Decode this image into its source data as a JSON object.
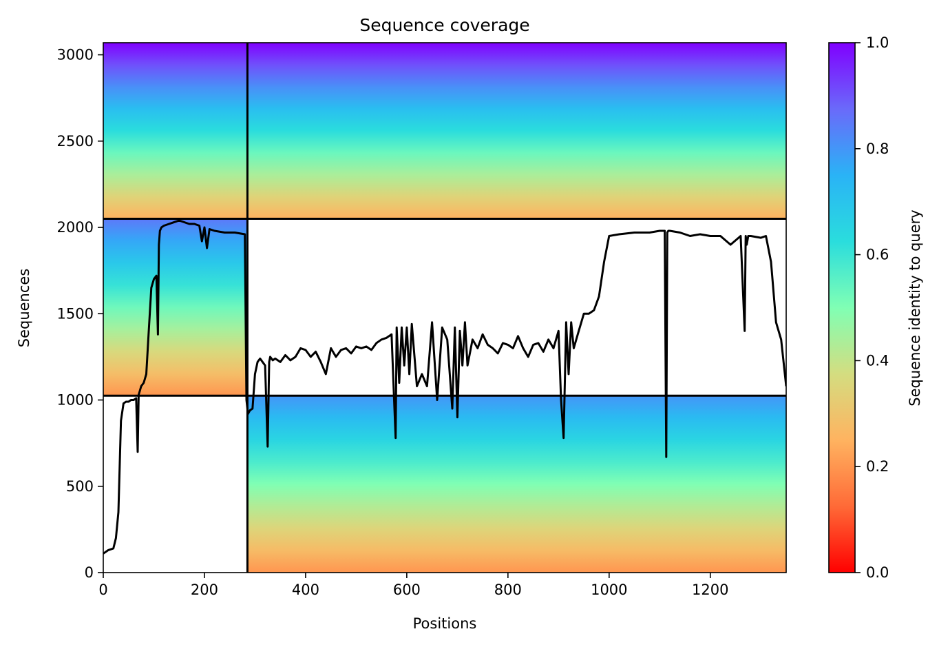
{
  "chart_data": {
    "type": "heatmap",
    "title": "Sequence coverage",
    "xlabel": "Positions",
    "ylabel": "Sequences",
    "xlim": [
      0,
      1350
    ],
    "ylim": [
      0,
      3070
    ],
    "x_ticks": [
      0,
      200,
      400,
      600,
      800,
      1000,
      1200
    ],
    "y_ticks": [
      0,
      500,
      1000,
      1500,
      2000,
      2500,
      3000
    ],
    "colorbar": {
      "label": "Sequence identity to query",
      "colormap": "rainbow_r",
      "range": [
        0.0,
        1.0
      ],
      "ticks": [
        "0.0",
        "0.2",
        "0.4",
        "0.6",
        "0.8",
        "1.0"
      ],
      "stops": [
        "#ff0000",
        "#ff6a37",
        "#ffb360",
        "#d4dd80",
        "#80ffb4",
        "#2adddd",
        "#2ab3f6",
        "#6a6afa",
        "#8000ff"
      ]
    },
    "chain_boundaries": {
      "x": [
        285
      ],
      "y": [
        1025,
        2050
      ]
    },
    "blocks": [
      {
        "name": "chain-A-self",
        "x": [
          0,
          285
        ],
        "y": [
          2050,
          3070
        ],
        "identity_top": 1.0,
        "identity_bottom": 0.25
      },
      {
        "name": "chain-B-paired",
        "x": [
          285,
          1350
        ],
        "y": [
          2050,
          3070
        ],
        "identity_top": 1.0,
        "identity_bottom": 0.25
      },
      {
        "name": "chain-A-paired",
        "x": [
          0,
          285
        ],
        "y": [
          1025,
          2050
        ],
        "identity_top": 0.85,
        "identity_bottom": 0.2
      },
      {
        "name": "chain-B-self",
        "x": [
          285,
          1350
        ],
        "y": [
          0,
          1025
        ],
        "identity_top": 0.8,
        "identity_bottom": 0.2
      }
    ],
    "coverage_line": {
      "color": "#000000",
      "x": [
        0,
        10,
        20,
        25,
        30,
        35,
        40,
        45,
        50,
        55,
        60,
        65,
        68,
        70,
        72,
        75,
        80,
        85,
        90,
        95,
        100,
        105,
        108,
        110,
        112,
        115,
        120,
        130,
        150,
        160,
        170,
        180,
        190,
        195,
        200,
        205,
        210,
        220,
        240,
        260,
        280,
        283,
        286,
        290,
        295,
        300,
        305,
        310,
        320,
        325,
        328,
        330,
        335,
        340,
        350,
        360,
        370,
        380,
        390,
        400,
        410,
        420,
        430,
        440,
        450,
        460,
        470,
        480,
        490,
        500,
        510,
        520,
        530,
        540,
        550,
        560,
        570,
        575,
        578,
        580,
        585,
        590,
        595,
        600,
        605,
        610,
        620,
        630,
        640,
        650,
        660,
        670,
        680,
        690,
        695,
        700,
        705,
        710,
        715,
        720,
        730,
        740,
        750,
        760,
        770,
        780,
        790,
        800,
        810,
        820,
        830,
        840,
        850,
        860,
        870,
        880,
        890,
        900,
        905,
        910,
        915,
        920,
        925,
        930,
        940,
        950,
        960,
        970,
        980,
        990,
        1000,
        1020,
        1050,
        1080,
        1100,
        1110,
        1113,
        1115,
        1117,
        1120,
        1140,
        1160,
        1180,
        1200,
        1220,
        1240,
        1260,
        1268,
        1270,
        1272,
        1275,
        1280,
        1300,
        1310,
        1320,
        1330,
        1340,
        1350
      ],
      "y": [
        110,
        130,
        140,
        200,
        350,
        880,
        980,
        990,
        990,
        1000,
        1000,
        1010,
        700,
        1030,
        1050,
        1080,
        1100,
        1150,
        1400,
        1650,
        1700,
        1720,
        1380,
        1900,
        1980,
        2000,
        2010,
        2020,
        2040,
        2030,
        2020,
        2020,
        2010,
        1920,
        2000,
        1880,
        1990,
        1980,
        1970,
        1970,
        1960,
        1000,
        920,
        940,
        950,
        1150,
        1220,
        1240,
        1200,
        730,
        1220,
        1250,
        1230,
        1240,
        1220,
        1260,
        1230,
        1250,
        1300,
        1290,
        1250,
        1280,
        1220,
        1150,
        1300,
        1250,
        1290,
        1300,
        1270,
        1310,
        1300,
        1310,
        1290,
        1330,
        1350,
        1360,
        1380,
        1000,
        780,
        1420,
        1100,
        1420,
        1200,
        1420,
        1150,
        1440,
        1080,
        1150,
        1080,
        1450,
        1000,
        1420,
        1350,
        950,
        1420,
        900,
        1400,
        1200,
        1450,
        1200,
        1350,
        1300,
        1380,
        1320,
        1300,
        1270,
        1330,
        1320,
        1300,
        1370,
        1300,
        1250,
        1320,
        1330,
        1280,
        1350,
        1300,
        1400,
        1000,
        780,
        1450,
        1150,
        1450,
        1300,
        1400,
        1500,
        1500,
        1520,
        1600,
        1800,
        1950,
        1960,
        1970,
        1970,
        1980,
        1980,
        670,
        1970,
        1980,
        1980,
        1970,
        1950,
        1960,
        1950,
        1950,
        1900,
        1950,
        1400,
        1950,
        1900,
        1950,
        1950,
        1940,
        1950,
        1800,
        1450,
        1350,
        1080
      ]
    }
  }
}
